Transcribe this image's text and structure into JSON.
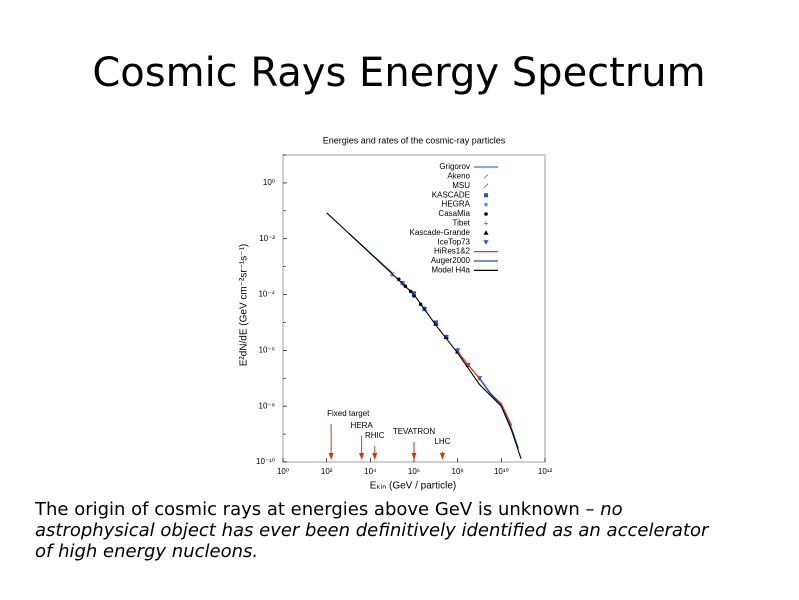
{
  "slide": {
    "title": "Cosmic Rays Energy Spectrum",
    "caption": [
      [
        {
          "text": "The origin of cosmic rays at energies above GeV is unknown – ",
          "italic": false
        },
        {
          "text": "no",
          "italic": true
        }
      ],
      [
        {
          "text": "astrophysical object has ever been definitively identified as an accelerator",
          "italic": true
        }
      ],
      [
        {
          "text": "of high energy nucleons.",
          "italic": true
        }
      ]
    ]
  },
  "chart_data": {
    "type": "scatter",
    "title": "Energies and rates of the cosmic-ray particles",
    "x_label": "Eₖᵢₙ  (GeV / particle)",
    "y_label": "E²dN/dE   (GeV cm⁻²sr⁻¹s⁻¹)",
    "log_x": true,
    "log_y": true,
    "xlim": [
      1,
      1000000000000
    ],
    "ylim": [
      1e-10,
      10
    ],
    "xticks": [
      {
        "value": 1,
        "label": "10⁰"
      },
      {
        "value": 100,
        "label": "10²"
      },
      {
        "value": 10000,
        "label": "10⁴"
      },
      {
        "value": 1000000,
        "label": "10⁶"
      },
      {
        "value": 100000000,
        "label": "10⁸"
      },
      {
        "value": 10000000000,
        "label": "10¹⁰"
      },
      {
        "value": 1000000000000,
        "label": "10¹²"
      }
    ],
    "yticks": [
      {
        "value": 1,
        "label": "10⁰"
      },
      {
        "value": 0.01,
        "label": "10⁻²"
      },
      {
        "value": 0.0001,
        "label": "10⁻⁴"
      },
      {
        "value": 1e-06,
        "label": "10⁻⁶"
      },
      {
        "value": 1e-08,
        "label": "10⁻⁸"
      },
      {
        "value": 1e-10,
        "label": "10⁻¹⁰"
      }
    ],
    "yminor": [
      10,
      0.1,
      0.001,
      1e-05,
      1e-07,
      1e-09
    ],
    "legend": "top-right",
    "series": [
      {
        "name": "Grigorov",
        "color": "#3a78c8",
        "marker": "line",
        "x": [
          1000,
          10000,
          100000
        ],
        "values": [
          0.016,
          0.003,
          0.0006
        ]
      },
      {
        "name": "Akeno",
        "color": "#3a78c8",
        "marker": "tick",
        "x": [
          1000000,
          10000000,
          100000000,
          1000000000
        ],
        "values": [
          0.00011,
          9e-06,
          1e-06,
          1e-07
        ]
      },
      {
        "name": "MSU",
        "color": "#3a78c8",
        "marker": "tick",
        "x": [
          100000,
          300000,
          1000000,
          3000000
        ],
        "values": [
          0.00055,
          0.00025,
          0.0001,
          3e-05
        ]
      },
      {
        "name": "KASCADE",
        "color": "#1f4fd8",
        "marker": "square",
        "x": [
          300000,
          1000000,
          3000000,
          10000000,
          30000000
        ],
        "values": [
          0.00026,
          0.00011,
          3e-05,
          1e-05,
          3e-06
        ]
      },
      {
        "name": "HEGRA",
        "color": "#6a8fd0",
        "marker": "dot",
        "x": [
          100000,
          300000,
          1000000
        ],
        "values": [
          0.0005,
          0.00024,
          0.0001
        ]
      },
      {
        "name": "CasaMia",
        "color": "#000000",
        "marker": "dot",
        "x": [
          200000,
          400000,
          700000,
          1000000,
          2000000
        ],
        "values": [
          0.00035,
          0.0002,
          0.00013,
          9e-05,
          4.5e-05
        ]
      },
      {
        "name": "Tibet",
        "color": "#3a78c8",
        "marker": "cross",
        "x": [
          300000,
          1000000,
          3000000,
          10000000,
          30000000
        ],
        "values": [
          0.00025,
          0.0001,
          3.3e-05,
          1e-05,
          3.2e-06
        ]
      },
      {
        "name": "Kascade-Grande",
        "color": "#000000",
        "marker": "triangle",
        "x": [
          10000000,
          30000000,
          100000000,
          300000000
        ],
        "values": [
          9e-06,
          3e-06,
          9e-07,
          3e-07
        ]
      },
      {
        "name": "IceTop73",
        "color": "#1f4fd8",
        "marker": "triangle-down",
        "x": [
          3000000,
          10000000,
          30000000,
          100000000,
          300000000,
          1000000000
        ],
        "values": [
          3e-05,
          1e-05,
          3e-06,
          1e-06,
          3e-07,
          1e-07
        ]
      },
      {
        "name": "HiRes1&2",
        "color": "#e0401a",
        "marker": "line",
        "x": [
          100000000,
          300000000,
          1000000000,
          3000000000,
          10000000000,
          30000000000
        ],
        "values": [
          9e-07,
          3e-07,
          1e-07,
          3e-08,
          1.2e-08,
          2e-09
        ]
      },
      {
        "name": "Auger2000",
        "color": "#1f4fd8",
        "marker": "line",
        "x": [
          1000000000,
          3000000000,
          10000000000,
          30000000000,
          60000000000
        ],
        "values": [
          1e-07,
          3e-08,
          1e-08,
          1.5e-09,
          3e-10
        ]
      },
      {
        "name": "Model H4a",
        "color": "#000000",
        "marker": "line",
        "x": [
          100,
          1000,
          10000,
          100000,
          1000000,
          10000000,
          100000000,
          1000000000,
          10000000000,
          30000000000,
          80000000000
        ],
        "values": [
          0.085,
          0.016,
          0.003,
          0.00055,
          0.0001,
          8e-06,
          8e-07,
          6e-08,
          1e-08,
          1.3e-09,
          1.3e-10
        ]
      }
    ],
    "annotations": [
      {
        "label": "Fixed target",
        "x": 160
      },
      {
        "label": "HERA",
        "x": 4000
      },
      {
        "label": "RHIC",
        "x": 16000
      },
      {
        "label": "TEVATRON",
        "x": 1000000
      },
      {
        "label": "LHC",
        "x": 20000000
      }
    ],
    "annotation_color": "#d03a10"
  }
}
